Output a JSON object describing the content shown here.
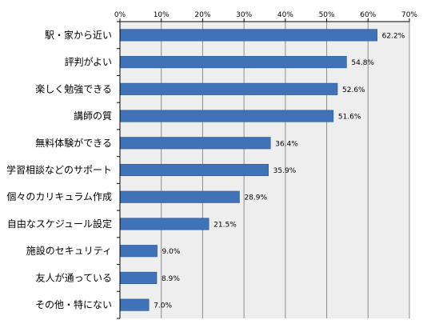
{
  "chart_data": {
    "type": "bar",
    "orientation": "horizontal",
    "categories": [
      "駅・家から近い",
      "評判がよい",
      "楽しく勉強できる",
      "講師の質",
      "無料体験ができる",
      "学習相談などのサポート",
      "個々のカリキュラム作成",
      "自由なスケジュール設定",
      "施設のセキュリティ",
      "友人が通っている",
      "その他・特にない"
    ],
    "values": [
      62.2,
      54.8,
      52.6,
      51.6,
      36.4,
      35.9,
      28.9,
      21.5,
      9.0,
      8.9,
      7.0
    ],
    "data_labels": [
      "62.2%",
      "54.8%",
      "52.6%",
      "51.6%",
      "36.4%",
      "35.9%",
      "28.9%",
      "21.5%",
      "9.0%",
      "8.9%",
      "7.0%"
    ],
    "x_ticks": [
      0,
      10,
      20,
      30,
      40,
      50,
      60,
      70
    ],
    "x_tick_labels": [
      "0%",
      "10%",
      "20%",
      "30%",
      "40%",
      "50%",
      "60%",
      "70%"
    ],
    "xlim": [
      0,
      70
    ],
    "axis_position": "top",
    "grid": true,
    "legend": "none",
    "title": "",
    "xlabel": "",
    "ylabel": "",
    "colors": {
      "bar": "#3f72b6",
      "bar_edge": "#2c5797",
      "plot_background": "#eeeeee",
      "grid": "#8c8c8c",
      "axis": "#000000"
    }
  }
}
